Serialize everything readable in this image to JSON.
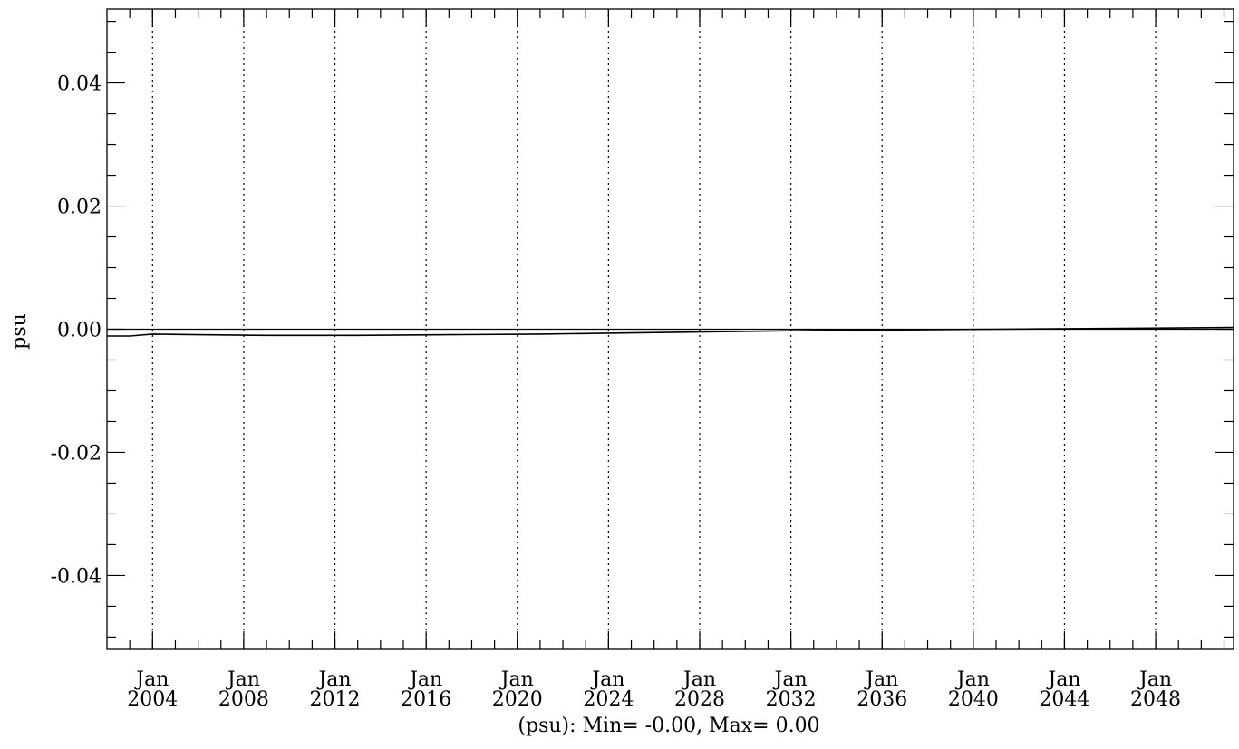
{
  "chart_data": {
    "type": "line",
    "title": "",
    "xlabel": "(psu): Min= -0.00, Max= 0.00",
    "ylabel": "psu",
    "xlim": [
      "2001-01",
      "2050-06"
    ],
    "ylim": [
      -0.052,
      0.052
    ],
    "y_ticks": [
      {
        "value": 0.04,
        "label": "0.04"
      },
      {
        "value": 0.02,
        "label": "0.02"
      },
      {
        "value": 0.0,
        "label": "0.00"
      },
      {
        "value": -0.02,
        "label": "-0.02"
      },
      {
        "value": -0.04,
        "label": "-0.04"
      }
    ],
    "x_ticks": [
      {
        "date": "2003-01",
        "month": "Jan",
        "year": "2004"
      },
      {
        "date": "2007-01",
        "month": "Jan",
        "year": "2008"
      },
      {
        "date": "2011-01",
        "month": "Jan",
        "year": "2012"
      },
      {
        "date": "2015-01",
        "month": "Jan",
        "year": "2016"
      },
      {
        "date": "2019-01",
        "month": "Jan",
        "year": "2020"
      },
      {
        "date": "2023-01",
        "month": "Jan",
        "year": "2024"
      },
      {
        "date": "2027-01",
        "month": "Jan",
        "year": "2028"
      },
      {
        "date": "2031-01",
        "month": "Jan",
        "year": "2032"
      },
      {
        "date": "2035-01",
        "month": "Jan",
        "year": "2036"
      },
      {
        "date": "2039-01",
        "month": "Jan",
        "year": "2040"
      },
      {
        "date": "2043-01",
        "month": "Jan",
        "year": "2044"
      },
      {
        "date": "2047-01",
        "month": "Jan",
        "year": "2048"
      }
    ],
    "grid": "vertical dotted",
    "zero_line": 0.0,
    "series": [
      {
        "points": [
          {
            "x": "2001-01",
            "y": -0.0011
          },
          {
            "x": "2002-01",
            "y": -0.0011
          },
          {
            "x": "2003-01",
            "y": -0.0008
          },
          {
            "x": "2005-01",
            "y": -0.0009
          },
          {
            "x": "2008-01",
            "y": -0.001
          },
          {
            "x": "2012-01",
            "y": -0.001
          },
          {
            "x": "2016-01",
            "y": -0.0009
          },
          {
            "x": "2020-01",
            "y": -0.0008
          },
          {
            "x": "2024-01",
            "y": -0.0006
          },
          {
            "x": "2028-01",
            "y": -0.0004
          },
          {
            "x": "2032-01",
            "y": -0.0002
          },
          {
            "x": "2036-01",
            "y": -0.0001
          },
          {
            "x": "2040-01",
            "y": 0.0
          },
          {
            "x": "2044-01",
            "y": 0.0001
          },
          {
            "x": "2048-01",
            "y": 0.0002
          },
          {
            "x": "2050-06",
            "y": 0.0003
          }
        ]
      }
    ]
  }
}
